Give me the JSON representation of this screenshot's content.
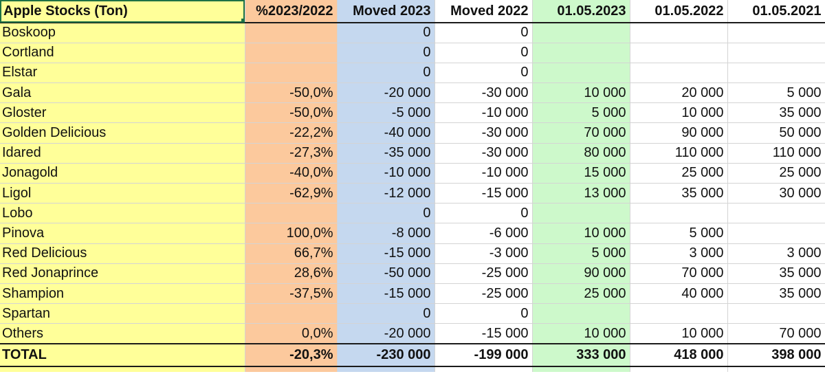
{
  "table": {
    "headers": [
      "Apple Stocks (Ton)",
      "%2023/2022",
      "Moved 2023",
      "Moved 2022",
      "01.05.2023",
      "01.05.2022",
      "01.05.2021"
    ],
    "rows": [
      [
        "Boskoop",
        "",
        "0",
        "0",
        "",
        "",
        ""
      ],
      [
        "Cortland",
        "",
        "0",
        "0",
        "",
        "",
        ""
      ],
      [
        "Elstar",
        "",
        "0",
        "0",
        "",
        "",
        ""
      ],
      [
        "Gala",
        "-50,0%",
        "-20 000",
        "-30 000",
        "10 000",
        "20 000",
        "5 000"
      ],
      [
        "Gloster",
        "-50,0%",
        "-5 000",
        "-10 000",
        "5 000",
        "10 000",
        "35 000"
      ],
      [
        "Golden Delicious",
        "-22,2%",
        "-40 000",
        "-30 000",
        "70 000",
        "90 000",
        "50 000"
      ],
      [
        "Idared",
        "-27,3%",
        "-35 000",
        "-30 000",
        "80 000",
        "110 000",
        "110 000"
      ],
      [
        "Jonagold",
        "-40,0%",
        "-10 000",
        "-10 000",
        "15 000",
        "25 000",
        "25 000"
      ],
      [
        "Ligol",
        "-62,9%",
        "-12 000",
        "-15 000",
        "13 000",
        "35 000",
        "30 000"
      ],
      [
        "Lobo",
        "",
        "0",
        "0",
        "",
        "",
        ""
      ],
      [
        "Pinova",
        "100,0%",
        "-8 000",
        "-6 000",
        "10 000",
        "5 000",
        ""
      ],
      [
        "Red Delicious",
        "66,7%",
        "-15 000",
        "-3 000",
        "5 000",
        "3 000",
        "3 000"
      ],
      [
        "Red Jonaprince",
        "28,6%",
        "-50 000",
        "-25 000",
        "90 000",
        "70 000",
        "35 000"
      ],
      [
        "Shampion",
        "-37,5%",
        "-15 000",
        "-25 000",
        "25 000",
        "40 000",
        "35 000"
      ],
      [
        "Spartan",
        "",
        "0",
        "0",
        "",
        "",
        ""
      ],
      [
        "Others",
        "0,0%",
        "-20 000",
        "-15 000",
        "10 000",
        "10 000",
        "70 000"
      ]
    ],
    "total": [
      "TOTAL",
      "-20,3%",
      "-230 000",
      "-199 000",
      "333 000",
      "418 000",
      "398 000"
    ]
  },
  "colors": {
    "name_column": "#ffff99",
    "percent_column": "#fcc99d",
    "moved_2023_column": "#c5d8ef",
    "date_2023_column": "#cdf9cb",
    "selection_border": "#1e7145"
  }
}
